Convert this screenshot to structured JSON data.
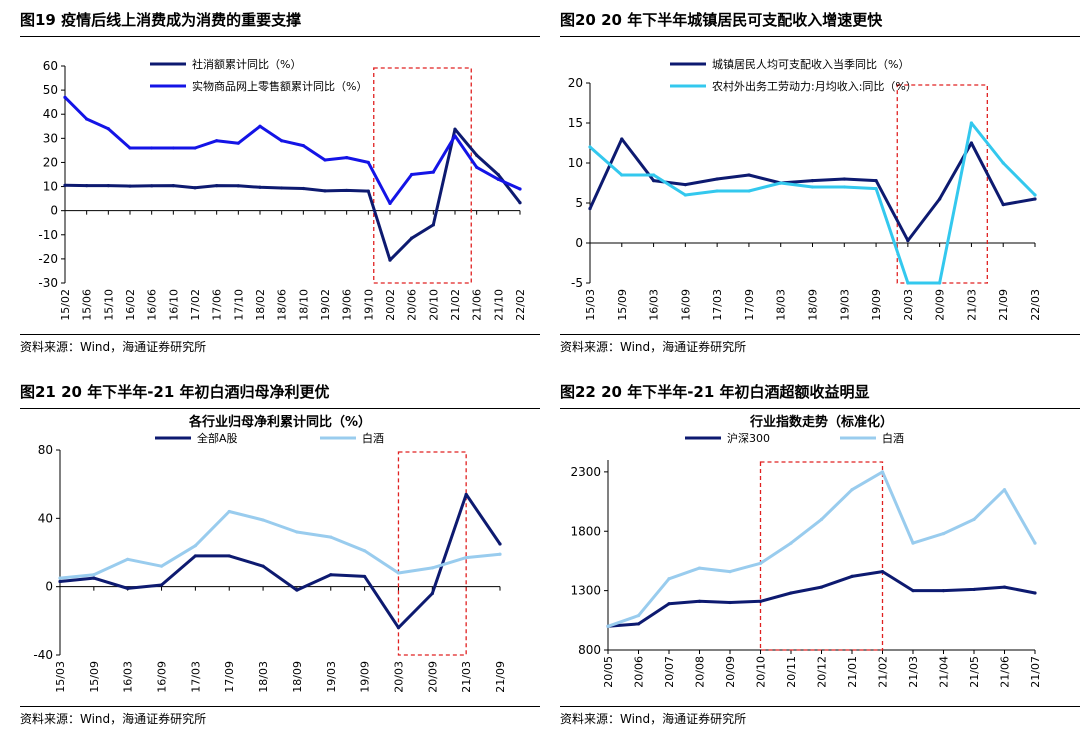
{
  "panels": [
    {
      "title": "图19 疫情后线上消费成为消费的重要支撑",
      "source": "资料来源：Wind，海通证券研究所",
      "chart_data": {
        "type": "line",
        "title": "",
        "xlabel": "",
        "ylabel": "",
        "ylim": [
          -30,
          60
        ],
        "yticks": [
          -30,
          -20,
          -10,
          0,
          10,
          20,
          30,
          40,
          50,
          60
        ],
        "xticks": [
          "15/02",
          "15/06",
          "15/10",
          "16/02",
          "16/06",
          "16/10",
          "17/02",
          "17/06",
          "17/10",
          "18/02",
          "18/06",
          "18/10",
          "19/02",
          "19/06",
          "19/10",
          "20/02",
          "20/06",
          "20/10",
          "21/02",
          "21/06",
          "21/10",
          "22/02"
        ],
        "x": [
          "15/02",
          "15/06",
          "15/10",
          "16/02",
          "16/06",
          "16/10",
          "17/02",
          "17/06",
          "17/10",
          "18/02",
          "18/06",
          "18/10",
          "19/02",
          "19/06",
          "19/10",
          "20/02",
          "20/06",
          "20/10",
          "21/02",
          "21/06",
          "21/10",
          "22/02"
        ],
        "legend": "top-center",
        "highlight_x": [
          "19/11",
          "21/05"
        ],
        "series": [
          {
            "name": "社消额累计同比（%）",
            "color": "#0d1a70",
            "values": [
              10.5,
              10.4,
              10.4,
              10.2,
              10.3,
              10.4,
              9.5,
              10.4,
              10.3,
              9.7,
              9.4,
              9.2,
              8.2,
              8.4,
              8.1,
              -20.5,
              -11.4,
              -5.9,
              33.8,
              23.0,
              14.9,
              3.3
            ]
          },
          {
            "name": "实物商品网上零售额累计同比（%）",
            "color": "#1414e6",
            "values": [
              47,
              38,
              34,
              26,
              26,
              26,
              26,
              29,
              28,
              35,
              29,
              27,
              21,
              22,
              20,
              3,
              15,
              16,
              31,
              18,
              13,
              9
            ]
          }
        ]
      }
    },
    {
      "title": "图20 20 年下半年城镇居民可支配收入增速更快",
      "source": "资料来源：Wind，海通证券研究所",
      "chart_data": {
        "type": "line",
        "title": "",
        "xlabel": "",
        "ylabel": "",
        "ylim": [
          -5,
          20
        ],
        "yticks": [
          -5,
          0,
          5,
          10,
          15,
          20
        ],
        "xticks": [
          "15/03",
          "15/09",
          "16/03",
          "16/09",
          "17/03",
          "17/09",
          "18/03",
          "18/09",
          "19/03",
          "19/09",
          "20/03",
          "20/09",
          "21/03",
          "21/09",
          "22/03"
        ],
        "x": [
          "15/03",
          "15/09",
          "16/03",
          "16/09",
          "17/03",
          "17/09",
          "18/03",
          "18/09",
          "19/03",
          "19/09",
          "20/03",
          "20/09",
          "21/03",
          "21/09",
          "22/03"
        ],
        "legend": "top-center",
        "highlight_x": [
          "20/01",
          "21/06"
        ],
        "series": [
          {
            "name": "城镇居民人均可支配收入当季同比（%）",
            "color": "#0d1a70",
            "values": [
              4.3,
              13.0,
              7.8,
              7.3,
              8.0,
              8.5,
              7.5,
              7.8,
              8.0,
              7.8,
              0.3,
              5.5,
              12.5,
              4.8,
              5.5
            ]
          },
          {
            "name": "农村外出务工劳动力:月均收入:同比（%）",
            "color": "#33c8ee",
            "values": [
              12.0,
              8.5,
              8.5,
              6.0,
              6.5,
              6.5,
              7.5,
              7.0,
              7.0,
              6.8,
              -5.0,
              -5.0,
              15.0,
              10.0,
              6.0
            ]
          }
        ]
      }
    },
    {
      "title": "图21 20 年下半年-21 年初白酒归母净利更优",
      "source": "资料来源：Wind，海通证券研究所",
      "chart_data": {
        "type": "line",
        "title": "各行业归母净利累计同比（%）",
        "xlabel": "",
        "ylabel": "",
        "ylim": [
          -40,
          80
        ],
        "yticks": [
          -40,
          0,
          40,
          80
        ],
        "xticks": [
          "15/03",
          "15/09",
          "16/03",
          "16/09",
          "17/03",
          "17/09",
          "18/03",
          "18/09",
          "19/03",
          "19/09",
          "20/03",
          "20/09",
          "21/03",
          "21/09"
        ],
        "x": [
          "15/03",
          "15/09",
          "16/03",
          "16/09",
          "17/03",
          "17/09",
          "18/03",
          "18/09",
          "19/03",
          "19/09",
          "20/03",
          "20/09",
          "21/03",
          "21/09"
        ],
        "legend": "top-center",
        "highlight_x": [
          "20/03",
          "21/03"
        ],
        "series": [
          {
            "name": "全部A股",
            "color": "#0d1a70",
            "values": [
              3,
              5,
              -1,
              1,
              18,
              18,
              12,
              -2,
              7,
              6,
              -24,
              -4,
              54,
              25
            ]
          },
          {
            "name": "白酒",
            "color": "#99ccee",
            "values": [
              5,
              7,
              16,
              12,
              24,
              44,
              39,
              32,
              29,
              21,
              8,
              11,
              17,
              19
            ]
          }
        ]
      }
    },
    {
      "title": "图22 20 年下半年-21 年初白酒超额收益明显",
      "source": "资料来源：Wind，海通证券研究所",
      "chart_data": {
        "type": "line",
        "title": "行业指数走势（标准化）",
        "xlabel": "",
        "ylabel": "",
        "ylim": [
          800,
          2400
        ],
        "yticks": [
          800,
          1300,
          1800,
          2300
        ],
        "xticks": [
          "20/05",
          "20/06",
          "20/07",
          "20/08",
          "20/09",
          "20/10",
          "20/11",
          "20/12",
          "21/01",
          "21/02",
          "21/03",
          "21/04",
          "21/05",
          "21/06",
          "21/07"
        ],
        "x": [
          "20/05",
          "20/06",
          "20/07",
          "20/08",
          "20/09",
          "20/10",
          "20/11",
          "20/12",
          "21/01",
          "21/02",
          "21/03",
          "21/04",
          "21/05",
          "21/06",
          "21/07"
        ],
        "legend": "top-center",
        "highlight_x": [
          "20/10",
          "21/02"
        ],
        "series": [
          {
            "name": "沪深300",
            "color": "#0d1a70",
            "values": [
              1000,
              1020,
              1190,
              1210,
              1200,
              1210,
              1280,
              1330,
              1420,
              1460,
              1300,
              1300,
              1310,
              1330,
              1280
            ]
          },
          {
            "name": "白酒",
            "color": "#99ccee",
            "values": [
              1000,
              1090,
              1400,
              1490,
              1460,
              1530,
              1700,
              1900,
              2150,
              2300,
              1700,
              1780,
              1900,
              2150,
              1700
            ]
          }
        ]
      }
    }
  ]
}
